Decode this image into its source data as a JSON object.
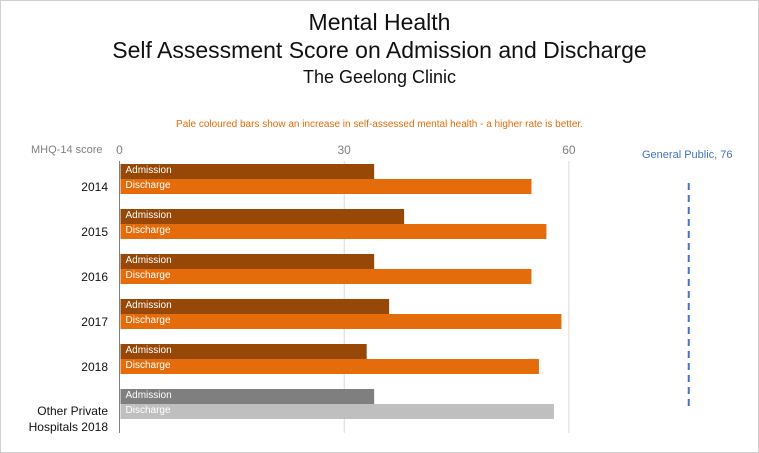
{
  "chart_data": {
    "type": "bar",
    "orientation": "horizontal",
    "title": "Mental Health",
    "subtitle": "Self Assessment Score on Admission and Discharge",
    "subtitle2": "The Geelong Clinic",
    "annotation": "Pale coloured bars show an increase in self-assessed mental health - a higher rate is better.",
    "xlabel": "MHQ-14 score",
    "xticks": [
      "0",
      "30",
      "60"
    ],
    "xlim": [
      0,
      80
    ],
    "grid": true,
    "categories": [
      "2014",
      "2015",
      "2016",
      "2017",
      "2018",
      "Other Private Hospitals 2018"
    ],
    "series": [
      {
        "name": "Admission",
        "values": [
          34,
          38,
          34,
          36,
          33,
          34
        ],
        "colors": [
          "#974706",
          "#974706",
          "#974706",
          "#974706",
          "#974706",
          "#7f7f7f"
        ]
      },
      {
        "name": "Discharge",
        "values": [
          55,
          57,
          55,
          59,
          56,
          58
        ],
        "colors": [
          "#e46c0a",
          "#e46c0a",
          "#e46c0a",
          "#e46c0a",
          "#e46c0a",
          "#bfbfbf"
        ]
      }
    ],
    "reference_line": {
      "label": "General Public, 76",
      "value": 76,
      "color": "#4472c4"
    }
  }
}
